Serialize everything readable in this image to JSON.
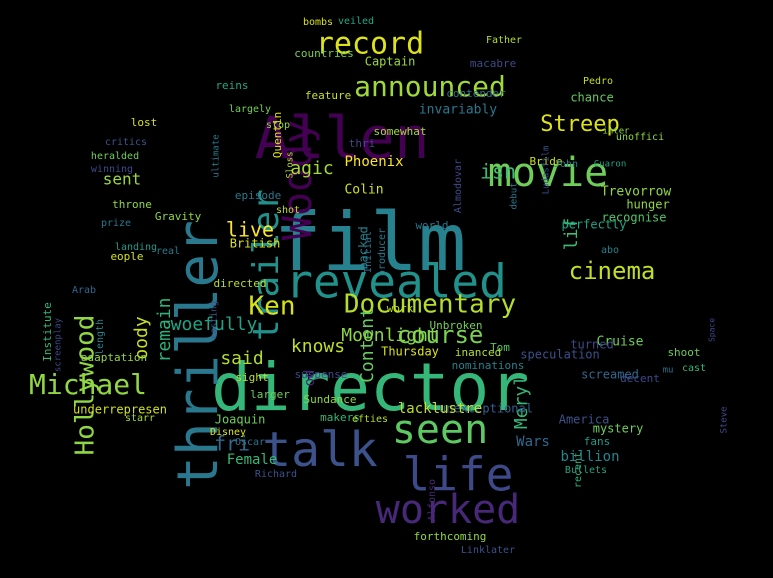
{
  "words": [
    {
      "text": "film",
      "color": "#26828e"
    },
    {
      "text": "director",
      "color": "#35b779"
    },
    {
      "text": "Allen",
      "color": "#440154"
    },
    {
      "text": "thriller",
      "color": "#2a788e"
    },
    {
      "text": "revealed",
      "color": "#21918c"
    },
    {
      "text": "talk",
      "color": "#3b528b"
    },
    {
      "text": "movie",
      "color": "#6ece58"
    },
    {
      "text": "seen",
      "color": "#5ec962"
    },
    {
      "text": "worked",
      "color": "#482878"
    },
    {
      "text": "life",
      "color": "#3e4989"
    },
    {
      "text": "Woody",
      "color": "#440154"
    },
    {
      "text": "trailer",
      "color": "#21918c"
    },
    {
      "text": "announced",
      "color": "#a0da39"
    },
    {
      "text": "record",
      "color": "#dde318"
    },
    {
      "text": "Documentary",
      "color": "#b5de2b"
    },
    {
      "text": "cinema",
      "color": "#c2df23"
    },
    {
      "text": "Michael",
      "color": "#90d743"
    },
    {
      "text": "Hollywood",
      "color": "#8fd744"
    },
    {
      "text": "course",
      "color": "#7ad151"
    },
    {
      "text": "Ken",
      "color": "#d8e219"
    },
    {
      "text": "Streep",
      "color": "#dde318"
    },
    {
      "text": "Content",
      "color": "#65cb5e"
    },
    {
      "text": "Moonlight",
      "color": "#8bd646"
    },
    {
      "text": "woefully",
      "color": "#20a486"
    },
    {
      "text": "said",
      "color": "#b2dd2d"
    },
    {
      "text": "knows",
      "color": "#c0df25"
    },
    {
      "text": "remain",
      "color": "#2db27d"
    },
    {
      "text": "Meryl",
      "color": "#35b779"
    },
    {
      "text": "isn",
      "color": "#3aba76"
    },
    {
      "text": "agic",
      "color": "#a5db36"
    },
    {
      "text": "live",
      "color": "#fde725"
    },
    {
      "text": "oody",
      "color": "#c8e020"
    },
    {
      "text": "fri",
      "color": "#31688e"
    },
    {
      "text": "od",
      "color": "#482475"
    },
    {
      "text": "Female",
      "color": "#37b878"
    },
    {
      "text": "sent",
      "color": "#9bd93c"
    },
    {
      "text": "lif",
      "color": "#3dbc74"
    },
    {
      "text": "Phoenix",
      "color": "#fde725"
    },
    {
      "text": "Colin",
      "color": "#d2e21b"
    },
    {
      "text": "Trevorrow",
      "color": "#90d743"
    },
    {
      "text": "hunger",
      "color": "#8fd744"
    },
    {
      "text": "recognise",
      "color": "#52c569"
    },
    {
      "text": "Wars",
      "color": "#31688e"
    },
    {
      "text": "billion",
      "color": "#24868e"
    },
    {
      "text": "mystery",
      "color": "#6ece58"
    },
    {
      "text": "Cruise",
      "color": "#6ece58"
    },
    {
      "text": "unexceptional",
      "color": "#35608d"
    },
    {
      "text": "lacklustre",
      "color": "#c2df23"
    },
    {
      "text": "speculation",
      "color": "#3b528b"
    },
    {
      "text": "screamed",
      "color": "#31688e"
    },
    {
      "text": "perfectly",
      "color": "#20a486"
    },
    {
      "text": "backed",
      "color": "#26828e"
    },
    {
      "text": "invariably",
      "color": "#2a788e"
    },
    {
      "text": "chance",
      "color": "#63cb5f"
    },
    {
      "text": "Bride",
      "color": "#cae11f"
    },
    {
      "text": "Captain",
      "color": "#9bd93c"
    },
    {
      "text": "macabre",
      "color": "#3e4989"
    },
    {
      "text": "contender",
      "color": "#2c728e"
    },
    {
      "text": "countries",
      "color": "#7ad151"
    },
    {
      "text": "bombs",
      "color": "#d8e219"
    },
    {
      "text": "veiled",
      "color": "#22a884"
    },
    {
      "text": "Father",
      "color": "#b5de2b"
    },
    {
      "text": "Pedro",
      "color": "#c2df23"
    },
    {
      "text": "feature",
      "color": "#c8e020"
    },
    {
      "text": "somewhat",
      "color": "#a5db36"
    },
    {
      "text": "thri",
      "color": "#3e4989"
    },
    {
      "text": "reins",
      "color": "#22a884"
    },
    {
      "text": "largely",
      "color": "#75d054"
    },
    {
      "text": "stop",
      "color": "#90d743"
    },
    {
      "text": "lost",
      "color": "#d8e219"
    },
    {
      "text": "critics",
      "color": "#3b528b"
    },
    {
      "text": "heralded",
      "color": "#6ece58"
    },
    {
      "text": "winning",
      "color": "#3e4989"
    },
    {
      "text": "throne",
      "color": "#8fd744"
    },
    {
      "text": "prize",
      "color": "#2a788e"
    },
    {
      "text": "Gravity",
      "color": "#8fd744"
    },
    {
      "text": "landing",
      "color": "#1f9a8a"
    },
    {
      "text": "eople",
      "color": "#d2e21b"
    },
    {
      "text": "real",
      "color": "#2a788e"
    },
    {
      "text": "British",
      "color": "#dde318"
    },
    {
      "text": "directed",
      "color": "#b5de2b"
    },
    {
      "text": "Initial",
      "color": "#2c728e"
    },
    {
      "text": "producer",
      "color": "#2a788e"
    },
    {
      "text": "work",
      "color": "#c2df23"
    },
    {
      "text": "Unbroken",
      "color": "#75d054"
    },
    {
      "text": "nominations",
      "color": "#26828e"
    },
    {
      "text": "decent",
      "color": "#3e4989"
    },
    {
      "text": "Tom",
      "color": "#52c569"
    },
    {
      "text": "turned",
      "color": "#3e4989"
    },
    {
      "text": "inanced",
      "color": "#b5de2b"
    },
    {
      "text": "Thursday",
      "color": "#dde318"
    },
    {
      "text": "suspense",
      "color": "#3e4989"
    },
    {
      "text": "larger",
      "color": "#6ece58"
    },
    {
      "text": "Sundance",
      "color": "#90d743"
    },
    {
      "text": "makers",
      "color": "#35b779"
    },
    {
      "text": "efties",
      "color": "#b5de2b"
    },
    {
      "text": "Joaquin",
      "color": "#6ece58"
    },
    {
      "text": "underrepresen",
      "color": "#d2e21b"
    },
    {
      "text": "adaptation",
      "color": "#90d743"
    },
    {
      "text": "sight",
      "color": "#c2df23"
    },
    {
      "text": "starr",
      "color": "#a5db36"
    },
    {
      "text": "Disney",
      "color": "#dde318"
    },
    {
      "text": "Oscar",
      "color": "#2c728e"
    },
    {
      "text": "Richard",
      "color": "#3b528b"
    },
    {
      "text": "America",
      "color": "#3b528b"
    },
    {
      "text": "fans",
      "color": "#1f9a8a"
    },
    {
      "text": "recent",
      "color": "#2db27d"
    },
    {
      "text": "Bullets",
      "color": "#20a486"
    },
    {
      "text": "Alfonso",
      "color": "#482878"
    },
    {
      "text": "forthcoming",
      "color": "#8fd744"
    },
    {
      "text": "Linklater",
      "color": "#3b528b"
    },
    {
      "text": "episode",
      "color": "#2a788e"
    },
    {
      "text": "shot",
      "color": "#c2df23"
    },
    {
      "text": "Quentin",
      "color": "#dde318"
    },
    {
      "text": "Sloss",
      "color": "#b5de2b"
    },
    {
      "text": "Almodovar",
      "color": "#3e4989"
    },
    {
      "text": "debut",
      "color": "#2a788e"
    },
    {
      "text": "Ludasfilm",
      "color": "#3b528b"
    },
    {
      "text": "John",
      "color": "#26828e"
    },
    {
      "text": "Cuaron",
      "color": "#20a486"
    },
    {
      "text": "inter",
      "color": "#8fd744"
    },
    {
      "text": "unoffici",
      "color": "#90d743"
    },
    {
      "text": "abo",
      "color": "#26828e"
    },
    {
      "text": "shoot",
      "color": "#6ece58"
    },
    {
      "text": "cast",
      "color": "#35b779"
    },
    {
      "text": "Steve",
      "color": "#3e4989"
    },
    {
      "text": "Space",
      "color": "#3e4989"
    },
    {
      "text": "Institute",
      "color": "#35b779"
    },
    {
      "text": "screenplay",
      "color": "#3e4989"
    },
    {
      "text": "Arab",
      "color": "#31688e"
    },
    {
      "text": "length",
      "color": "#26828e"
    },
    {
      "text": "casting",
      "color": "#3b528b"
    },
    {
      "text": "ultimate",
      "color": "#2a788e"
    },
    {
      "text": "mu",
      "color": "#2c728e"
    },
    {
      "text": "world",
      "color": "#2a788e"
    }
  ]
}
